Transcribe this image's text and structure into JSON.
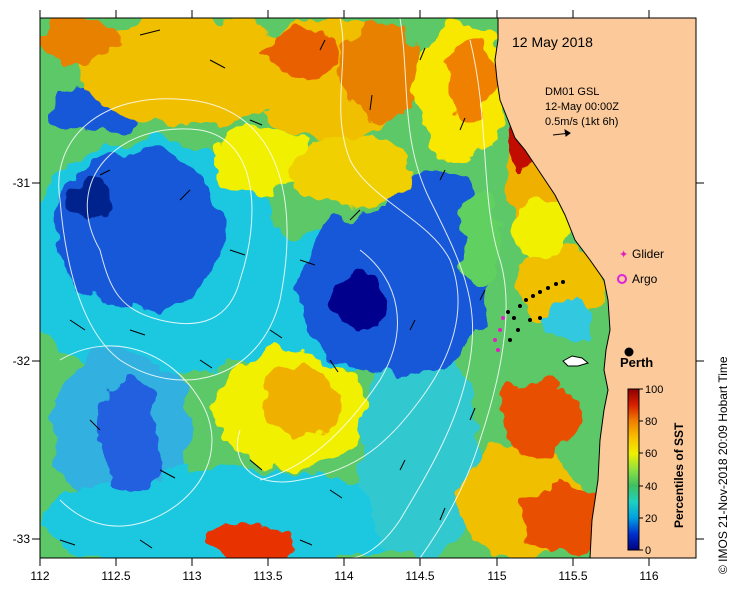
{
  "map": {
    "title_date": "12 May 2018",
    "current_info": {
      "line1": "DM01 GSL",
      "line2": "12-May 00:00Z",
      "line3": "0.5m/s (1kt 6h)"
    },
    "legend": {
      "glider_label": "Glider",
      "argo_label": "Argo",
      "glider_color": "#e020c0",
      "argo_color": "#e020e0"
    },
    "city": {
      "name": "Perth"
    },
    "colorbar": {
      "title": "Percentiles of SST",
      "ticks": [
        "100",
        "80",
        "60",
        "40",
        "20",
        "0"
      ],
      "colors": [
        "#00007f",
        "#0030d0",
        "#00a0e0",
        "#20d0c0",
        "#40c060",
        "#90e040",
        "#f0f000",
        "#f8c000",
        "#f08000",
        "#d82000",
        "#8c0000"
      ]
    },
    "x_ticks": [
      "112",
      "112.5",
      "113",
      "113.5",
      "114",
      "114.5",
      "115",
      "115.5",
      "116"
    ],
    "y_ticks": [
      "-31",
      "-32",
      "-33"
    ],
    "credit": "© IMOS 21-Nov-2018 20:09 Hobart Time",
    "land_color": "#fbc99a"
  }
}
